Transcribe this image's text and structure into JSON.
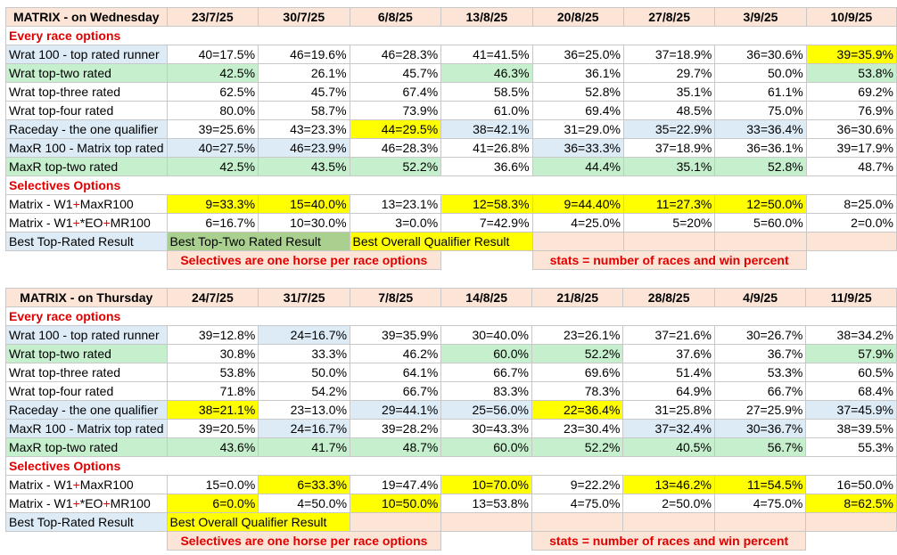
{
  "wednesday": {
    "title": "MATRIX - on Wednesday",
    "dates": [
      "23/7/25",
      "30/7/25",
      "6/8/25",
      "13/8/25",
      "20/8/25",
      "27/8/25",
      "3/9/25",
      "10/9/25"
    ],
    "every_race_header": "Every race options",
    "rows": [
      {
        "label": "Wrat 100 - top rated runner",
        "values": [
          "40=17.5%",
          "46=19.6%",
          "46=28.3%",
          "41=41.5%",
          "36=25.0%",
          "37=18.9%",
          "36=30.6%",
          "39=35.9%"
        ]
      },
      {
        "label": "Wrat top-two rated",
        "values": [
          "42.5%",
          "26.1%",
          "45.7%",
          "46.3%",
          "36.1%",
          "29.7%",
          "50.0%",
          "53.8%"
        ]
      },
      {
        "label": "Wrat top-three rated",
        "values": [
          "62.5%",
          "45.7%",
          "67.4%",
          "58.5%",
          "52.8%",
          "35.1%",
          "61.1%",
          "69.2%"
        ]
      },
      {
        "label": "Wrat top-four rated",
        "values": [
          "80.0%",
          "58.7%",
          "73.9%",
          "61.0%",
          "69.4%",
          "48.5%",
          "75.0%",
          "76.9%"
        ]
      },
      {
        "label": "Raceday - the one qualifier",
        "values": [
          "39=25.6%",
          "43=23.3%",
          "44=29.5%",
          "38=42.1%",
          "31=29.0%",
          "35=22.9%",
          "33=36.4%",
          "36=30.6%"
        ]
      },
      {
        "label": "MaxR 100 - Matrix top rated",
        "values": [
          "40=27.5%",
          "46=23.9%",
          "46=28.3%",
          "41=26.8%",
          "36=33.3%",
          "37=18.9%",
          "36=36.1%",
          "39=17.9%"
        ]
      },
      {
        "label": "MaxR top-two rated",
        "values": [
          "42.5%",
          "43.5%",
          "52.2%",
          "36.6%",
          "44.4%",
          "35.1%",
          "52.8%",
          "48.7%"
        ]
      }
    ],
    "selectives_header": "Selectives Options",
    "sel_rows": [
      {
        "label_a": "Matrix - W1",
        "plus1": "+",
        "label_b": "MaxR100",
        "values": [
          "9=33.3%",
          "15=40.0%",
          "13=23.1%",
          "12=58.3%",
          "9=44.40%",
          "11=27.3%",
          "12=50.0%",
          "8=25.0%"
        ]
      },
      {
        "label_a": "Matrix - W1",
        "plus1": "+",
        "label_mid": "*EO",
        "plus2": "+",
        "label_b": "MR100",
        "values": [
          "6=16.7%",
          "10=30.0%",
          "3=0.0%",
          "7=42.9%",
          "4=25.0%",
          "5=20%",
          "5=60.0%",
          "2=0.0%"
        ]
      }
    ],
    "legend": {
      "top_rated": "Best Top-Rated Result",
      "top_two": "Best Top-Two Rated Result",
      "overall": "Best Overall Qualifier Result"
    },
    "notes": {
      "selectives": "Selectives are one horse per race options",
      "stats": "stats = number of races and win percent"
    }
  },
  "thursday": {
    "title": "MATRIX - on Thursday",
    "dates": [
      "24/7/25",
      "31/7/25",
      "7/8/25",
      "14/8/25",
      "21/8/25",
      "28/8/25",
      "4/9/25",
      "11/9/25"
    ],
    "every_race_header": "Every race options",
    "rows": [
      {
        "label": "Wrat 100 - top rated runner",
        "values": [
          "39=12.8%",
          "24=16.7%",
          "39=35.9%",
          "30=40.0%",
          "23=26.1%",
          "37=21.6%",
          "30=26.7%",
          "38=34.2%"
        ]
      },
      {
        "label": "Wrat top-two rated",
        "values": [
          "30.8%",
          "33.3%",
          "46.2%",
          "60.0%",
          "52.2%",
          "37.6%",
          "36.7%",
          "57.9%"
        ]
      },
      {
        "label": "Wrat top-three rated",
        "values": [
          "53.8%",
          "50.0%",
          "64.1%",
          "66.7%",
          "69.6%",
          "51.4%",
          "53.3%",
          "60.5%"
        ]
      },
      {
        "label": "Wrat top-four rated",
        "values": [
          "71.8%",
          "54.2%",
          "66.7%",
          "83.3%",
          "78.3%",
          "64.9%",
          "66.7%",
          "68.4%"
        ]
      },
      {
        "label": "Raceday - the one qualifier",
        "values": [
          "38=21.1%",
          "23=13.0%",
          "29=44.1%",
          "25=56.0%",
          "22=36.4%",
          "31=25.8%",
          "27=25.9%",
          "37=45.9%"
        ]
      },
      {
        "label": "MaxR 100 - Matrix top rated",
        "values": [
          "39=20.5%",
          "24=16.7%",
          "39=28.2%",
          "30=43.3%",
          "23=30.4%",
          "37=32.4%",
          "30=36.7%",
          "38=39.5%"
        ]
      },
      {
        "label": "MaxR top-two rated",
        "values": [
          "43.6%",
          "41.7%",
          "48.7%",
          "60.0%",
          "52.2%",
          "40.5%",
          "56.7%",
          "55.3%"
        ]
      }
    ],
    "selectives_header": "Selectives Options",
    "sel_rows": [
      {
        "label_a": "Matrix - W1",
        "plus1": "+",
        "label_b": "MaxR100",
        "values": [
          "15=0.0%",
          "6=33.3%",
          "19=47.4%",
          "10=70.0%",
          "9=22.2%",
          "13=46.2%",
          "11=54.5%",
          "16=50.0%"
        ]
      },
      {
        "label_a": "Matrix - W1",
        "plus1": "+",
        "label_mid": "*EO",
        "plus2": "+",
        "label_b": "MR100",
        "values": [
          "6=0.0%",
          "4=50.0%",
          "10=50.0%",
          "13=53.8%",
          "4=75.0%",
          "2=50.0%",
          "4=75.0%",
          "8=62.5%"
        ]
      }
    ],
    "legend": {
      "top_rated": "Best Top-Rated Result",
      "overall": "Best Overall Qualifier Result"
    },
    "notes": {
      "selectives": "Selectives are one horse per race options",
      "stats": "stats = number of races and win percent"
    }
  }
}
